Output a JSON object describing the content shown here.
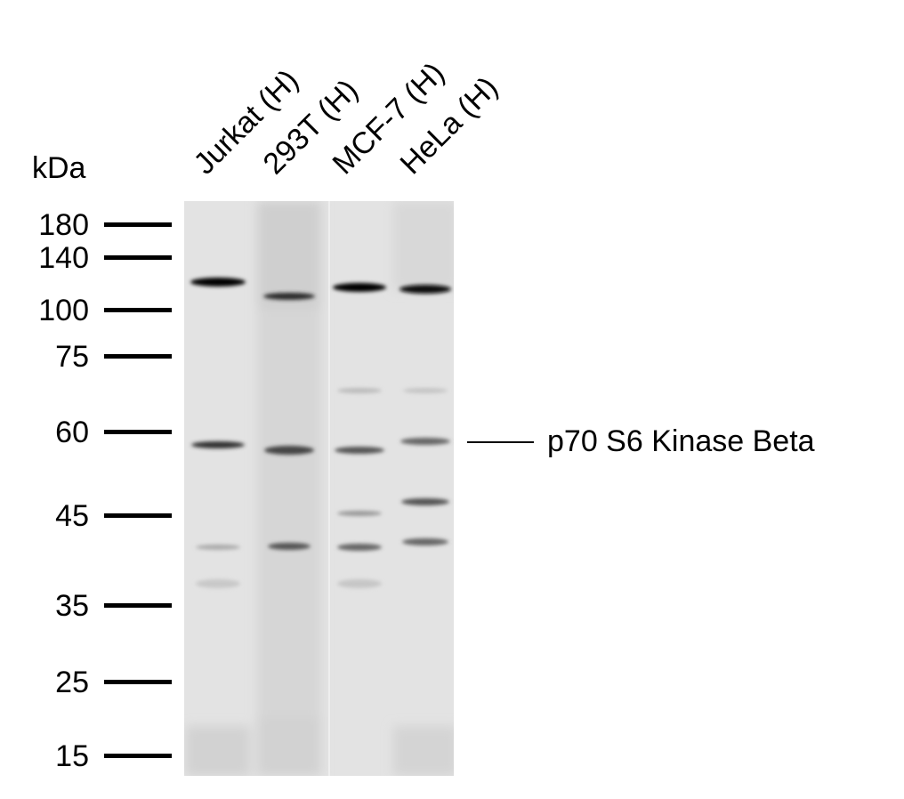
{
  "unit_label": "kDa",
  "lanes": [
    "Jurkat (H)",
    "293T (H)",
    "MCF-7 (H)",
    "HeLa (H)"
  ],
  "markers": [
    "180",
    "140",
    "100",
    "75",
    "60",
    "45",
    "35",
    "25",
    "15"
  ],
  "target_label": "p70 S6 Kinase Beta",
  "colors": {
    "text": "#000000",
    "membrane": "#e2e2e2",
    "band": "#111111"
  }
}
